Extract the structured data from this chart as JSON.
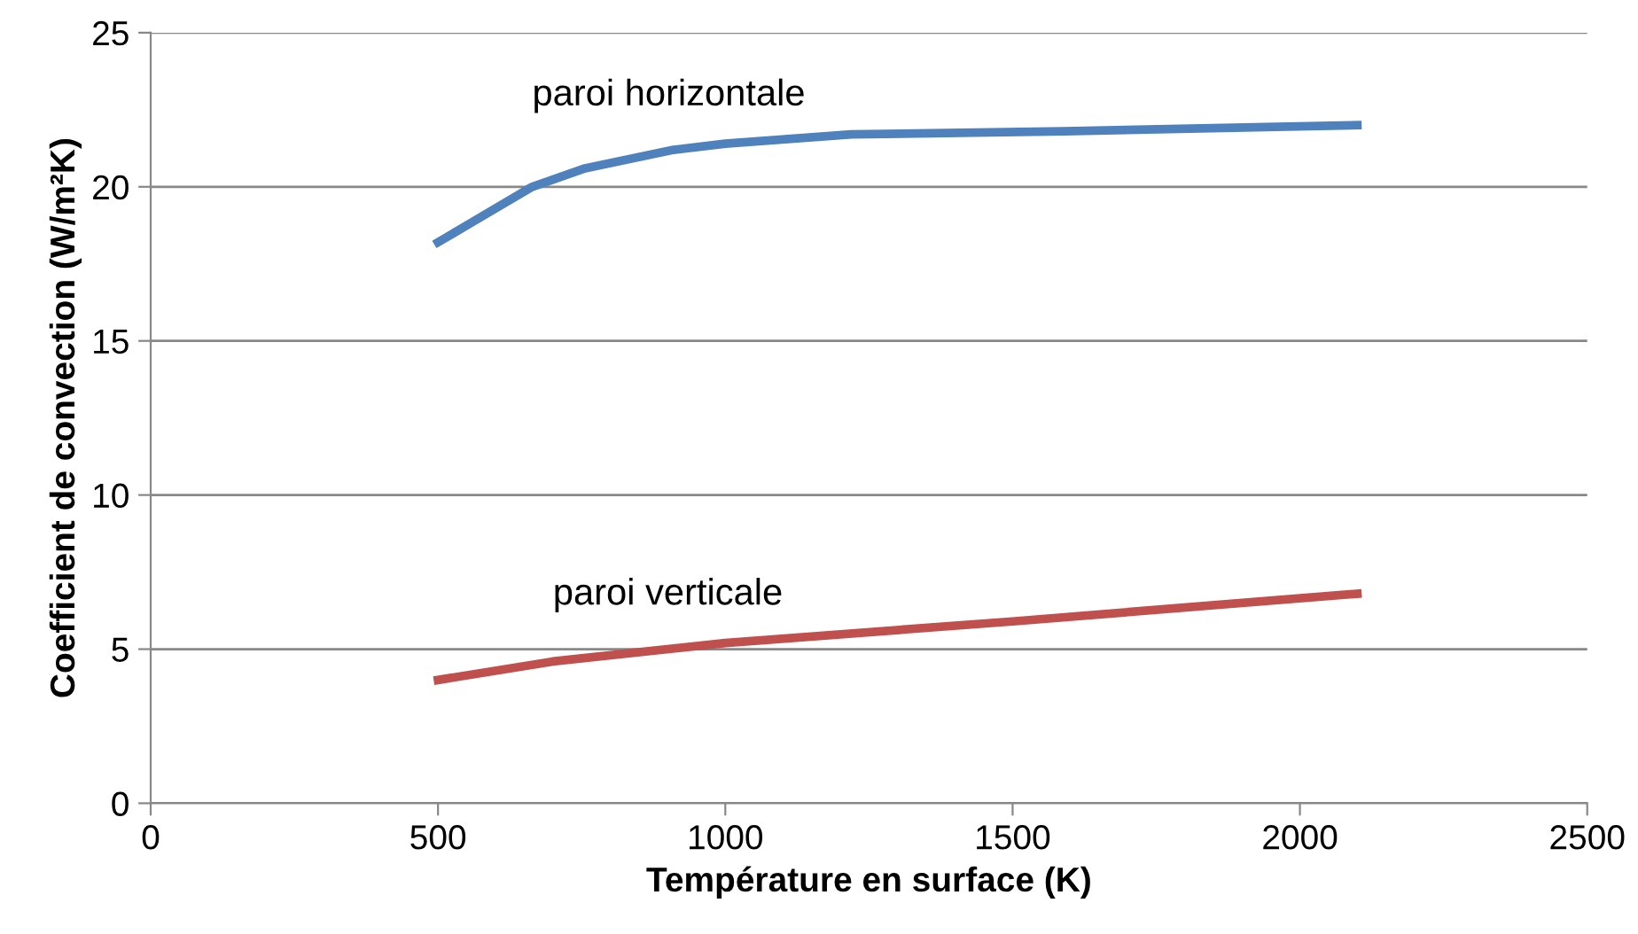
{
  "chart_data": {
    "type": "line",
    "xlabel": "Température en surface (K)",
    "ylabel": "Coefficient de convection (W/m²K)",
    "xlim": [
      0,
      2500
    ],
    "xticks": [
      0,
      500,
      1000,
      1500,
      2000,
      2500
    ],
    "ylim": [
      0,
      25
    ],
    "yticks": [
      0,
      5,
      10,
      15,
      20,
      25
    ],
    "grid": "y",
    "marker": "none",
    "line_style": "solid",
    "series": [
      {
        "name": "paroi horizontale",
        "color": "#4f81bd",
        "x": [
          500,
          664,
          756,
          910,
          1000,
          1219,
          1590,
          2100
        ],
        "values": [
          18.2,
          20.0,
          20.6,
          21.2,
          21.4,
          21.7,
          21.8,
          22.0
        ]
      },
      {
        "name": "paroi verticale",
        "color": "#c0504d",
        "x": [
          500,
          700,
          1000,
          1500,
          2100
        ],
        "values": [
          4.0,
          4.6,
          5.2,
          5.9,
          6.8
        ]
      }
    ]
  }
}
